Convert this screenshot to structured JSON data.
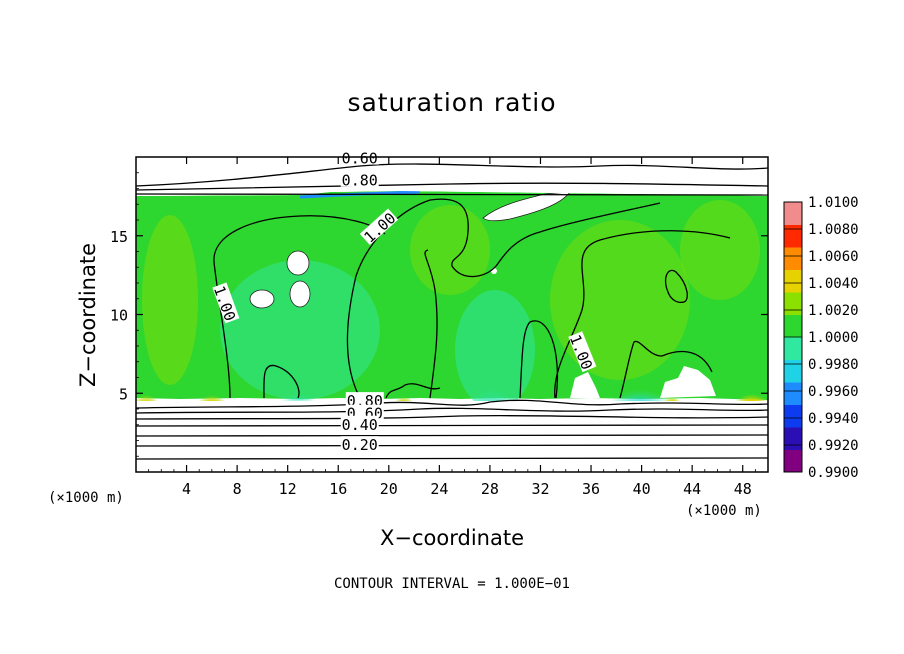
{
  "chart_data": {
    "type": "heatmap",
    "title": "saturation ratio",
    "xlabel": "X−coordinate",
    "ylabel": "Z−coordinate",
    "x_unit": "(×1000 m)",
    "footer": "CONTOUR INTERVAL = 1.000E−01",
    "xlim": [
      0,
      50
    ],
    "ylim": [
      0,
      20
    ],
    "x_ticks": [
      4,
      8,
      12,
      16,
      20,
      24,
      28,
      32,
      36,
      40,
      44,
      48
    ],
    "y_ticks": [
      5,
      10,
      15
    ],
    "colorbar": {
      "min": 0.99,
      "max": 1.01,
      "labels": [
        "1.0100",
        "1.0080",
        "1.0060",
        "1.0040",
        "1.0020",
        "1.0000",
        "0.9980",
        "0.9960",
        "0.9940",
        "0.9920",
        "0.9900"
      ],
      "colors": [
        "#800080",
        "#2b0fb4",
        "#0d3cf0",
        "#1e8cff",
        "#20d2e6",
        "#30e8a0",
        "#2ed630",
        "#8ce000",
        "#e6d200",
        "#ff8c00",
        "#ff2a00",
        "#f08c8c"
      ]
    },
    "contour_labels": [
      {
        "text": "0.60",
        "x": 17.7,
        "z": 19.9
      },
      {
        "text": "0.80",
        "x": 17.7,
        "z": 18.5
      },
      {
        "text": "1.00",
        "x": 19.3,
        "z": 15.5
      },
      {
        "text": "1.00",
        "x": 7.0,
        "z": 10.7
      },
      {
        "text": "1.00",
        "x": 35.2,
        "z": 7.6
      },
      {
        "text": "0.80",
        "x": 18.1,
        "z": 4.5
      },
      {
        "text": "0.60",
        "x": 18.1,
        "z": 3.7
      },
      {
        "text": "0.40",
        "x": 17.7,
        "z": 3.0
      },
      {
        "text": "0.20",
        "x": 17.7,
        "z": 1.7
      }
    ]
  }
}
